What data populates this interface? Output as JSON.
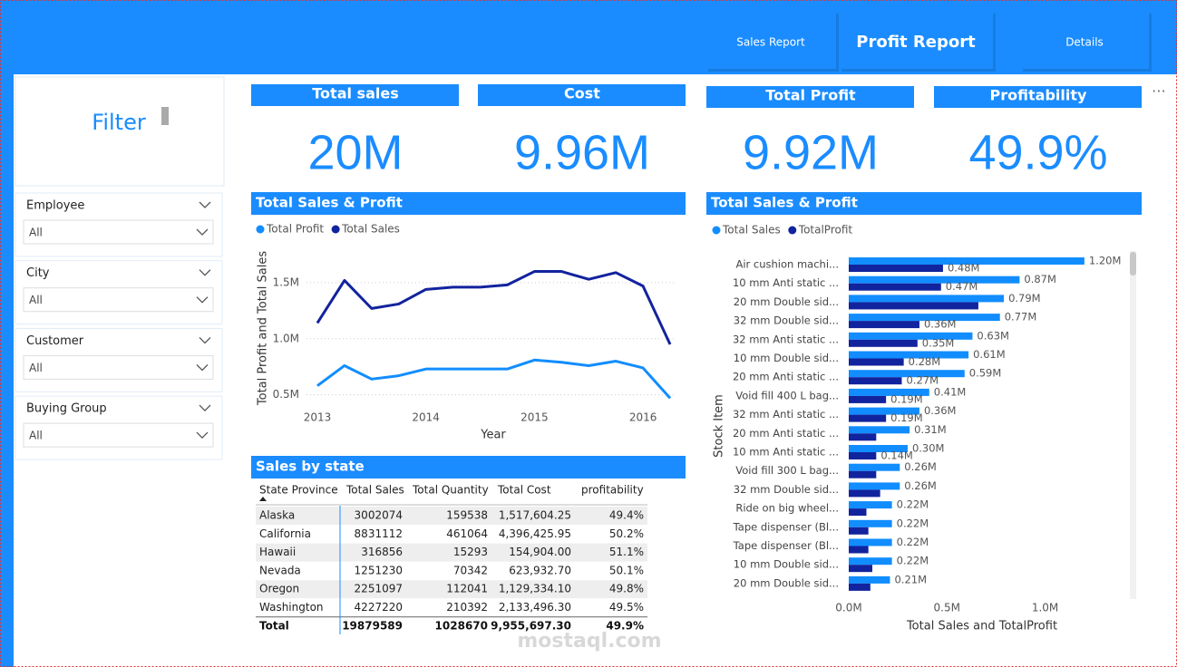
{
  "nav": {
    "tabs": [
      "Sales Report",
      "Profit Report",
      "Details"
    ],
    "active": 1
  },
  "filter": {
    "title": "Filter",
    "slicers": [
      {
        "label": "Employee",
        "value": "All"
      },
      {
        "label": "City",
        "value": "All"
      },
      {
        "label": "Customer",
        "value": "All"
      },
      {
        "label": "Buying Group",
        "value": "All"
      }
    ]
  },
  "kpis": [
    {
      "title": "Total sales",
      "value": "20M"
    },
    {
      "title": "Cost",
      "value": "9.96M"
    },
    {
      "title": "Total Profit",
      "value": "9.92M"
    },
    {
      "title": "Profitability",
      "value": "49.9%"
    }
  ],
  "table": {
    "title": "Sales by state",
    "columns": [
      "State Province",
      "Total Sales",
      "Total Quantity",
      "Total Cost",
      "profitability"
    ],
    "rows": [
      [
        "Alaska",
        "3002074",
        "159538",
        "1,517,604.25",
        "49.4%"
      ],
      [
        "California",
        "8831112",
        "461064",
        "4,396,425.95",
        "50.2%"
      ],
      [
        "Hawaii",
        "316856",
        "15293",
        "154,904.00",
        "51.1%"
      ],
      [
        "Nevada",
        "1251230",
        "70342",
        "623,932.70",
        "50.1%"
      ],
      [
        "Oregon",
        "2251097",
        "112041",
        "1,129,334.10",
        "49.8%"
      ],
      [
        "Washington",
        "4227220",
        "210392",
        "2,133,496.30",
        "49.5%"
      ]
    ],
    "total": [
      "Total",
      "19879589",
      "1028670",
      "9,955,697.30",
      "49.9%"
    ]
  },
  "chart_data": [
    {
      "type": "line",
      "title": "Total Sales & Profit",
      "x_label": "Year",
      "y_label": "Total Profit and Total Sales",
      "x": [
        2013,
        2013.25,
        2013.5,
        2013.75,
        2014,
        2014.25,
        2014.5,
        2014.75,
        2015,
        2015.25,
        2015.5,
        2015.75,
        2016,
        2016.25
      ],
      "series": [
        {
          "name": "Total Profit",
          "color": "#118dff",
          "values": [
            580000,
            760000,
            640000,
            670000,
            730000,
            730000,
            730000,
            730000,
            810000,
            790000,
            760000,
            800000,
            740000,
            470000
          ]
        },
        {
          "name": "Total Sales",
          "color": "#12239e",
          "values": [
            1140000,
            1520000,
            1270000,
            1310000,
            1440000,
            1460000,
            1460000,
            1480000,
            1600000,
            1600000,
            1530000,
            1590000,
            1470000,
            950000
          ]
        }
      ],
      "xlim": [
        2012.9,
        2016.3
      ],
      "xticks": [
        2013,
        2014,
        2015,
        2016
      ],
      "ylim": [
        400000,
        1750000
      ],
      "yticks": [
        {
          "value": 500000,
          "label": "0.5M"
        },
        {
          "value": 1000000,
          "label": "1.0M"
        },
        {
          "value": 1500000,
          "label": "1.5M"
        }
      ],
      "grid": true
    },
    {
      "type": "hbar",
      "title": "Total Sales & Profit",
      "x_label": "Total Sales and TotalProfit",
      "y_label": "Stock Item",
      "categories": [
        "Air cushion machi...",
        "10 mm Anti static ...",
        "20 mm Double sid...",
        "32 mm Double sid...",
        "32 mm Anti static ...",
        "10 mm Double sid...",
        "20 mm Anti static ...",
        "Void fill 400 L bag...",
        "32 mm Anti static ...",
        "20 mm Anti static ...",
        "10 mm Anti static ...",
        "Void fill 300 L bag...",
        "32 mm Double sid...",
        "Ride on big wheel...",
        "Tape dispenser (Bl...",
        "Tape dispenser (Bl...",
        "10 mm Double sid...",
        "20 mm Double sid..."
      ],
      "series": [
        {
          "name": "Total Sales",
          "color": "#118dff",
          "values": [
            1200000,
            870000,
            790000,
            770000,
            630000,
            610000,
            590000,
            410000,
            360000,
            310000,
            300000,
            260000,
            260000,
            220000,
            220000,
            220000,
            220000,
            210000
          ],
          "value_labels": [
            "1.20M",
            "0.87M",
            "0.79M",
            "0.77M",
            "0.63M",
            "0.61M",
            "0.59M",
            "0.41M",
            "0.36M",
            "0.31M",
            "0.30M",
            "0.26M",
            "0.26M",
            "0.22M",
            "0.22M",
            "0.22M",
            "0.22M",
            "0.21M"
          ]
        },
        {
          "name": "TotalProfit",
          "color": "#12239e",
          "values": [
            480000,
            470000,
            660000,
            360000,
            350000,
            280000,
            270000,
            190000,
            190000,
            140000,
            140000,
            140000,
            160000,
            90000,
            100000,
            100000,
            120000,
            110000
          ],
          "value_labels": [
            "0.48M",
            "0.47M",
            null,
            "0.36M",
            "0.35M",
            "0.28M",
            "0.27M",
            "0.19M",
            "0.19M",
            null,
            "0.14M",
            null,
            null,
            null,
            null,
            null,
            null,
            null
          ]
        }
      ],
      "xlim": [
        0,
        1450000
      ],
      "xticks": [
        {
          "value": 0,
          "label": "0.0M"
        },
        {
          "value": 500000,
          "label": "0.5M"
        },
        {
          "value": 1000000,
          "label": "1.0M"
        }
      ]
    }
  ],
  "watermark": "mostaql.com"
}
